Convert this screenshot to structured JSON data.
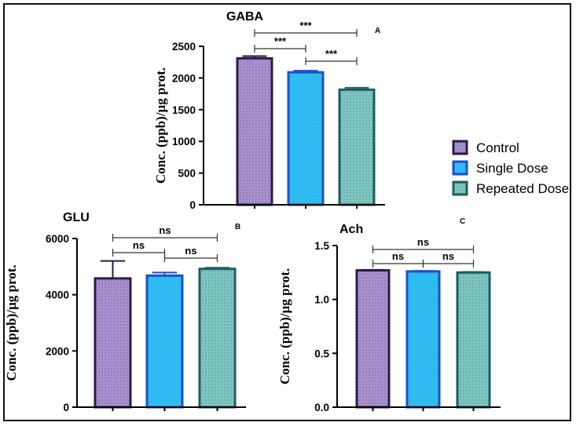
{
  "legend": {
    "items": [
      {
        "label": "Control",
        "fill": "#a792cf",
        "stroke": "#2e1a47",
        "pattern": "dots"
      },
      {
        "label": "Single Dose",
        "fill": "#2ebdf2",
        "stroke": "#1f4fc8",
        "pattern": "none"
      },
      {
        "label": "Repeated Dose",
        "fill": "#7fc5c1",
        "stroke": "#1b5f62",
        "pattern": "dots"
      }
    ]
  },
  "chart_data": [
    {
      "type": "bar",
      "title": "GABA",
      "panel_label": "A",
      "ylabel": "Conc. (ppb)/µg prot.",
      "categories": [
        "Control",
        "Single Dose",
        "Repeated Dose"
      ],
      "values": [
        2310,
        2090,
        1815
      ],
      "errors": [
        35,
        25,
        30
      ],
      "ylim": [
        0,
        2500
      ],
      "yticks": [
        "0",
        "500",
        "1000",
        "1500",
        "2000",
        "2500"
      ],
      "significance": [
        {
          "from": 0,
          "to": 1,
          "label": "***"
        },
        {
          "from": 1,
          "to": 2,
          "label": "***"
        },
        {
          "from": 0,
          "to": 2,
          "label": "***"
        }
      ]
    },
    {
      "type": "bar",
      "title": "GLU",
      "panel_label": "B",
      "ylabel": "Conc. (ppb)/µg prot.",
      "categories": [
        "Control",
        "Single Dose",
        "Repeated Dose"
      ],
      "values": [
        4580,
        4680,
        4920
      ],
      "errors": [
        620,
        110,
        40
      ],
      "ylim": [
        0,
        6000
      ],
      "yticks": [
        "0",
        "2000",
        "4000",
        "6000"
      ],
      "significance": [
        {
          "from": 0,
          "to": 1,
          "label": "ns"
        },
        {
          "from": 1,
          "to": 2,
          "label": "ns"
        },
        {
          "from": 0,
          "to": 2,
          "label": "ns"
        }
      ]
    },
    {
      "type": "bar",
      "title": "Ach",
      "panel_label": "C",
      "ylabel": "Conc. (ppb)/µg prot.",
      "categories": [
        "Control",
        "Single Dose",
        "Repeated Dose"
      ],
      "values": [
        1.27,
        1.26,
        1.25
      ],
      "errors": [
        0.005,
        0.005,
        0.005
      ],
      "ylim": [
        0,
        1.5
      ],
      "yticks": [
        "0.0",
        "0.5",
        "1.0",
        "1.5"
      ],
      "significance": [
        {
          "from": 0,
          "to": 1,
          "label": "ns"
        },
        {
          "from": 1,
          "to": 2,
          "label": "ns"
        },
        {
          "from": 0,
          "to": 2,
          "label": "ns"
        }
      ]
    }
  ]
}
